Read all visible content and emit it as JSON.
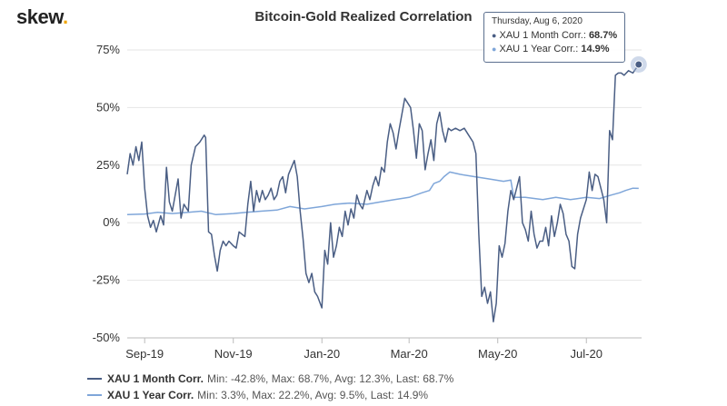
{
  "logo": {
    "text": "skew",
    "dot": "."
  },
  "chart_data": {
    "type": "line",
    "title": "Bitcoin-Gold Realized Correlation",
    "x_range": [
      "2019-08-20",
      "2020-08-08"
    ],
    "ylim": [
      -50,
      75
    ],
    "y_ticks": [
      -50,
      -25,
      0,
      25,
      50,
      75
    ],
    "y_tick_labels": [
      "-50%",
      "-25%",
      "0%",
      "25%",
      "50%",
      "75%"
    ],
    "x_ticks": [
      "2019-09-01",
      "2019-11-01",
      "2020-01-01",
      "2020-03-01",
      "2020-05-01",
      "2020-07-01"
    ],
    "x_tick_labels": [
      "Sep-19",
      "Nov-19",
      "Jan-20",
      "Mar-20",
      "May-20",
      "Jul-20"
    ],
    "grid": "horizontal",
    "legend_position": "bottom-left",
    "series": [
      {
        "name": "XAU 1 Month Corr.",
        "color": "#4a5e84",
        "stats": "Min: -42.8%, Max: 68.7%, Avg: 12.3%, Last: 68.7%",
        "points": [
          [
            "2019-08-20",
            21
          ],
          [
            "2019-08-22",
            30
          ],
          [
            "2019-08-24",
            25
          ],
          [
            "2019-08-26",
            33
          ],
          [
            "2019-08-28",
            27
          ],
          [
            "2019-08-30",
            35
          ],
          [
            "2019-09-01",
            15
          ],
          [
            "2019-09-03",
            3
          ],
          [
            "2019-09-05",
            -2
          ],
          [
            "2019-09-07",
            1
          ],
          [
            "2019-09-09",
            -4
          ],
          [
            "2019-09-12",
            3
          ],
          [
            "2019-09-14",
            -1
          ],
          [
            "2019-09-16",
            24
          ],
          [
            "2019-09-18",
            9
          ],
          [
            "2019-09-20",
            5
          ],
          [
            "2019-09-22",
            12
          ],
          [
            "2019-09-24",
            19
          ],
          [
            "2019-09-26",
            2
          ],
          [
            "2019-09-28",
            8
          ],
          [
            "2019-10-01",
            5
          ],
          [
            "2019-10-03",
            25
          ],
          [
            "2019-10-06",
            33
          ],
          [
            "2019-10-09",
            35
          ],
          [
            "2019-10-12",
            38
          ],
          [
            "2019-10-13",
            37
          ],
          [
            "2019-10-15",
            -4
          ],
          [
            "2019-10-17",
            -5
          ],
          [
            "2019-10-19",
            -14
          ],
          [
            "2019-10-21",
            -21
          ],
          [
            "2019-10-23",
            -12
          ],
          [
            "2019-10-25",
            -8
          ],
          [
            "2019-10-27",
            -10
          ],
          [
            "2019-10-29",
            -8
          ],
          [
            "2019-11-01",
            -10
          ],
          [
            "2019-11-03",
            -11
          ],
          [
            "2019-11-05",
            -4
          ],
          [
            "2019-11-07",
            -5
          ],
          [
            "2019-11-09",
            -6
          ],
          [
            "2019-11-11",
            8
          ],
          [
            "2019-11-13",
            18
          ],
          [
            "2019-11-15",
            5
          ],
          [
            "2019-11-17",
            14
          ],
          [
            "2019-11-19",
            9
          ],
          [
            "2019-11-21",
            14
          ],
          [
            "2019-11-23",
            10
          ],
          [
            "2019-11-25",
            12
          ],
          [
            "2019-11-27",
            15
          ],
          [
            "2019-11-29",
            10
          ],
          [
            "2019-12-01",
            12
          ],
          [
            "2019-12-03",
            18
          ],
          [
            "2019-12-05",
            20
          ],
          [
            "2019-12-07",
            13
          ],
          [
            "2019-12-09",
            21
          ],
          [
            "2019-12-11",
            24
          ],
          [
            "2019-12-13",
            27
          ],
          [
            "2019-12-15",
            20
          ],
          [
            "2019-12-17",
            5
          ],
          [
            "2019-12-19",
            -7
          ],
          [
            "2019-12-21",
            -22
          ],
          [
            "2019-12-23",
            -26
          ],
          [
            "2019-12-25",
            -22
          ],
          [
            "2019-12-27",
            -30
          ],
          [
            "2019-12-29",
            -32
          ],
          [
            "2020-01-01",
            -37
          ],
          [
            "2020-01-03",
            -12
          ],
          [
            "2020-01-05",
            -18
          ],
          [
            "2020-01-07",
            0
          ],
          [
            "2020-01-09",
            -15
          ],
          [
            "2020-01-11",
            -10
          ],
          [
            "2020-01-13",
            -2
          ],
          [
            "2020-01-15",
            -6
          ],
          [
            "2020-01-17",
            5
          ],
          [
            "2020-01-19",
            -1
          ],
          [
            "2020-01-21",
            6
          ],
          [
            "2020-01-23",
            2
          ],
          [
            "2020-01-25",
            12
          ],
          [
            "2020-01-27",
            8
          ],
          [
            "2020-01-29",
            6
          ],
          [
            "2020-02-01",
            14
          ],
          [
            "2020-02-03",
            10
          ],
          [
            "2020-02-05",
            16
          ],
          [
            "2020-02-07",
            20
          ],
          [
            "2020-02-09",
            16
          ],
          [
            "2020-02-11",
            24
          ],
          [
            "2020-02-13",
            22
          ],
          [
            "2020-02-15",
            35
          ],
          [
            "2020-02-17",
            43
          ],
          [
            "2020-02-19",
            39
          ],
          [
            "2020-02-21",
            32
          ],
          [
            "2020-02-23",
            40
          ],
          [
            "2020-02-25",
            47
          ],
          [
            "2020-02-27",
            54
          ],
          [
            "2020-02-29",
            52
          ],
          [
            "2020-03-02",
            50
          ],
          [
            "2020-03-04",
            40
          ],
          [
            "2020-03-06",
            28
          ],
          [
            "2020-03-08",
            43
          ],
          [
            "2020-03-10",
            40
          ],
          [
            "2020-03-12",
            23
          ],
          [
            "2020-03-14",
            30
          ],
          [
            "2020-03-16",
            36
          ],
          [
            "2020-03-18",
            27
          ],
          [
            "2020-03-20",
            43
          ],
          [
            "2020-03-22",
            48
          ],
          [
            "2020-03-24",
            40
          ],
          [
            "2020-03-26",
            35
          ],
          [
            "2020-03-28",
            41
          ],
          [
            "2020-03-30",
            40
          ],
          [
            "2020-04-02",
            41
          ],
          [
            "2020-04-05",
            40
          ],
          [
            "2020-04-08",
            41
          ],
          [
            "2020-04-11",
            38
          ],
          [
            "2020-04-14",
            35
          ],
          [
            "2020-04-16",
            30
          ],
          [
            "2020-04-18",
            -5
          ],
          [
            "2020-04-20",
            -32
          ],
          [
            "2020-04-22",
            -28
          ],
          [
            "2020-04-24",
            -35
          ],
          [
            "2020-04-26",
            -30
          ],
          [
            "2020-04-28",
            -43
          ],
          [
            "2020-04-30",
            -35
          ],
          [
            "2020-05-02",
            -10
          ],
          [
            "2020-05-04",
            -15
          ],
          [
            "2020-05-06",
            -9
          ],
          [
            "2020-05-08",
            5
          ],
          [
            "2020-05-10",
            14
          ],
          [
            "2020-05-12",
            10
          ],
          [
            "2020-05-14",
            15
          ],
          [
            "2020-05-16",
            20
          ],
          [
            "2020-05-18",
            0
          ],
          [
            "2020-05-20",
            -3
          ],
          [
            "2020-05-22",
            -8
          ],
          [
            "2020-05-24",
            5
          ],
          [
            "2020-05-26",
            -5
          ],
          [
            "2020-05-28",
            -11
          ],
          [
            "2020-05-30",
            -8
          ],
          [
            "2020-06-01",
            -8
          ],
          [
            "2020-06-03",
            -2
          ],
          [
            "2020-06-05",
            -10
          ],
          [
            "2020-06-07",
            3
          ],
          [
            "2020-06-09",
            -6
          ],
          [
            "2020-06-11",
            0
          ],
          [
            "2020-06-13",
            8
          ],
          [
            "2020-06-15",
            4
          ],
          [
            "2020-06-17",
            -5
          ],
          [
            "2020-06-19",
            -8
          ],
          [
            "2020-06-21",
            -19
          ],
          [
            "2020-06-23",
            -20
          ],
          [
            "2020-06-25",
            -5
          ],
          [
            "2020-06-27",
            2
          ],
          [
            "2020-06-29",
            6
          ],
          [
            "2020-07-01",
            10
          ],
          [
            "2020-07-03",
            22
          ],
          [
            "2020-07-05",
            14
          ],
          [
            "2020-07-07",
            21
          ],
          [
            "2020-07-09",
            20
          ],
          [
            "2020-07-11",
            15
          ],
          [
            "2020-07-13",
            10
          ],
          [
            "2020-07-15",
            0
          ],
          [
            "2020-07-17",
            40
          ],
          [
            "2020-07-19",
            36
          ],
          [
            "2020-07-21",
            64
          ],
          [
            "2020-07-23",
            65
          ],
          [
            "2020-07-25",
            65
          ],
          [
            "2020-07-27",
            64
          ],
          [
            "2020-07-30",
            66
          ],
          [
            "2020-08-02",
            65
          ],
          [
            "2020-08-06",
            68.7
          ]
        ]
      },
      {
        "name": "XAU 1 Year Corr.",
        "color": "#7fa6d9",
        "stats": "Min: 3.3%, Max: 22.2%, Avg: 9.5%, Last: 14.9%",
        "points": [
          [
            "2019-08-20",
            3.5
          ],
          [
            "2019-09-01",
            3.8
          ],
          [
            "2019-09-10",
            4.5
          ],
          [
            "2019-09-20",
            4
          ],
          [
            "2019-10-01",
            4.5
          ],
          [
            "2019-10-10",
            5
          ],
          [
            "2019-10-20",
            3.5
          ],
          [
            "2019-11-01",
            4
          ],
          [
            "2019-11-10",
            4.5
          ],
          [
            "2019-11-20",
            5
          ],
          [
            "2019-12-01",
            5.5
          ],
          [
            "2019-12-10",
            7
          ],
          [
            "2019-12-20",
            6
          ],
          [
            "2020-01-01",
            7
          ],
          [
            "2020-01-10",
            8
          ],
          [
            "2020-01-20",
            8.5
          ],
          [
            "2020-02-01",
            8
          ],
          [
            "2020-02-10",
            9
          ],
          [
            "2020-02-20",
            10
          ],
          [
            "2020-03-01",
            11
          ],
          [
            "2020-03-10",
            13
          ],
          [
            "2020-03-15",
            14
          ],
          [
            "2020-03-18",
            17
          ],
          [
            "2020-03-22",
            18
          ],
          [
            "2020-03-25",
            20
          ],
          [
            "2020-03-29",
            22
          ],
          [
            "2020-04-05",
            21
          ],
          [
            "2020-04-15",
            20
          ],
          [
            "2020-04-25",
            19
          ],
          [
            "2020-05-05",
            18
          ],
          [
            "2020-05-10",
            18.5
          ],
          [
            "2020-05-12",
            11
          ],
          [
            "2020-05-20",
            11
          ],
          [
            "2020-06-01",
            10
          ],
          [
            "2020-06-10",
            11
          ],
          [
            "2020-06-20",
            10
          ],
          [
            "2020-07-01",
            11
          ],
          [
            "2020-07-10",
            10.5
          ],
          [
            "2020-07-18",
            12
          ],
          [
            "2020-07-24",
            13
          ],
          [
            "2020-07-28",
            14
          ],
          [
            "2020-08-02",
            15
          ],
          [
            "2020-08-06",
            14.9
          ]
        ]
      }
    ],
    "marker": {
      "date": "2020-08-06",
      "value": 68.7
    }
  },
  "tooltip": {
    "date": "Thursday, Aug 6, 2020",
    "rows": [
      {
        "label": "XAU 1 Month Corr.:",
        "value": "68.7%"
      },
      {
        "label": "XAU 1 Year Corr.:",
        "value": "14.9%"
      }
    ]
  }
}
